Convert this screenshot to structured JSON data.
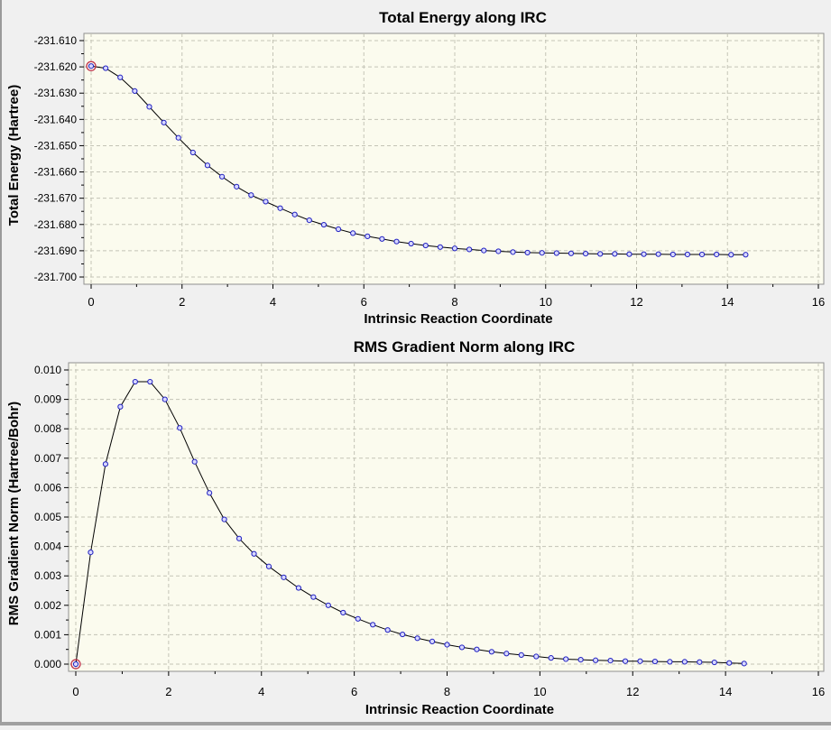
{
  "chart_data": [
    {
      "type": "line",
      "title": "Total Energy along IRC",
      "xlabel": "Intrinsic Reaction Coordinate",
      "ylabel": "Total Energy (Hartree)",
      "xlim": [
        0,
        16
      ],
      "ylim": [
        -231.7,
        -231.61
      ],
      "x_ticks": [
        0,
        2,
        4,
        6,
        8,
        10,
        12,
        14,
        16
      ],
      "y_ticks": [
        -231.7,
        -231.69,
        -231.68,
        -231.67,
        -231.66,
        -231.65,
        -231.64,
        -231.63,
        -231.62,
        -231.61
      ],
      "y_tick_labels": [
        "-231.700",
        "-231.690",
        "-231.680",
        "-231.670",
        "-231.660",
        "-231.650",
        "-231.640",
        "-231.630",
        "-231.620",
        "-231.610"
      ],
      "grid": true,
      "highlight_point_index": 0,
      "series": [
        {
          "x": [
            0.0,
            0.32,
            0.64,
            0.96,
            1.28,
            1.6,
            1.92,
            2.24,
            2.56,
            2.88,
            3.2,
            3.52,
            3.84,
            4.16,
            4.48,
            4.8,
            5.12,
            5.44,
            5.76,
            6.08,
            6.4,
            6.72,
            7.04,
            7.36,
            7.68,
            8.0,
            8.32,
            8.64,
            8.96,
            9.28,
            9.6,
            9.92,
            10.24,
            10.56,
            10.88,
            11.2,
            11.52,
            11.84,
            12.16,
            12.48,
            12.8,
            13.12,
            13.44,
            13.76,
            14.08,
            14.4
          ],
          "y": [
            -231.6197,
            -231.6205,
            -231.624,
            -231.6292,
            -231.6352,
            -231.6412,
            -231.647,
            -231.6526,
            -231.6575,
            -231.6618,
            -231.6656,
            -231.6688,
            -231.6713,
            -231.6738,
            -231.6762,
            -231.6784,
            -231.6801,
            -231.6818,
            -231.6833,
            -231.6845,
            -231.6855,
            -231.6865,
            -231.6873,
            -231.688,
            -231.6886,
            -231.6891,
            -231.6895,
            -231.6899,
            -231.6902,
            -231.6905,
            -231.6907,
            -231.6908,
            -231.6909,
            -231.691,
            -231.6911,
            -231.6912,
            -231.6912,
            -231.6913,
            -231.6913,
            -231.6913,
            -231.6914,
            -231.6914,
            -231.6914,
            -231.6914,
            -231.6915,
            -231.6915
          ]
        }
      ]
    },
    {
      "type": "line",
      "title": "RMS Gradient Norm along IRC",
      "xlabel": "Intrinsic Reaction Coordinate",
      "ylabel": "RMS Gradient Norm (Hartree/Bohr)",
      "xlim": [
        0,
        16
      ],
      "ylim": [
        0,
        0.01
      ],
      "x_ticks": [
        0,
        2,
        4,
        6,
        8,
        10,
        12,
        14,
        16
      ],
      "y_ticks": [
        0,
        0.001,
        0.002,
        0.003,
        0.004,
        0.005,
        0.006,
        0.007,
        0.008,
        0.009,
        0.01
      ],
      "y_tick_labels": [
        "0.000",
        "0.001",
        "0.002",
        "0.003",
        "0.004",
        "0.005",
        "0.006",
        "0.007",
        "0.008",
        "0.009",
        "0.010"
      ],
      "grid": true,
      "highlight_point_index": 0,
      "series": [
        {
          "x": [
            0.0,
            0.32,
            0.64,
            0.96,
            1.28,
            1.6,
            1.92,
            2.24,
            2.56,
            2.88,
            3.2,
            3.52,
            3.84,
            4.16,
            4.48,
            4.8,
            5.12,
            5.44,
            5.76,
            6.08,
            6.4,
            6.72,
            7.04,
            7.36,
            7.68,
            8.0,
            8.32,
            8.64,
            8.96,
            9.28,
            9.6,
            9.92,
            10.24,
            10.56,
            10.88,
            11.2,
            11.52,
            11.84,
            12.16,
            12.48,
            12.8,
            13.12,
            13.44,
            13.76,
            14.08,
            14.4
          ],
          "y": [
            0.0,
            0.0038,
            0.0068,
            0.00875,
            0.0096,
            0.0096,
            0.009,
            0.00803,
            0.00688,
            0.00582,
            0.00492,
            0.00427,
            0.00375,
            0.00332,
            0.00295,
            0.00259,
            0.00228,
            0.002,
            0.00175,
            0.00154,
            0.00134,
            0.00116,
            0.00101,
            0.00088,
            0.00077,
            0.00066,
            0.00057,
            0.0005,
            0.00042,
            0.00036,
            0.00031,
            0.00026,
            0.00021,
            0.00017,
            0.00015,
            0.00013,
            0.00012,
            0.0001,
            0.0001,
            9e-05,
            8e-05,
            8e-05,
            7e-05,
            6e-05,
            4e-05,
            2e-05
          ]
        }
      ]
    }
  ]
}
